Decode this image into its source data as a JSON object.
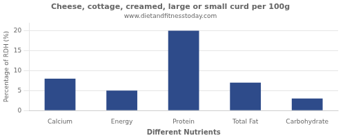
{
  "chart_data": {
    "type": "bar",
    "title": "Cheese, cottage, creamed, large or small curd per 100g",
    "subtitle": "www.dietandfitnesstoday.com",
    "categories": [
      "Calcium",
      "Energy",
      "Protein",
      "Total Fat",
      "Carbohydrate"
    ],
    "values": [
      8,
      5,
      20,
      7,
      3
    ],
    "color": "#2e4b8a",
    "xlabel": "Different Nutrients",
    "ylabel": "Percentage of RDH (%)",
    "ylim": [
      0,
      22
    ],
    "yticks": [
      0,
      5,
      10,
      15,
      20
    ],
    "grid": true
  }
}
